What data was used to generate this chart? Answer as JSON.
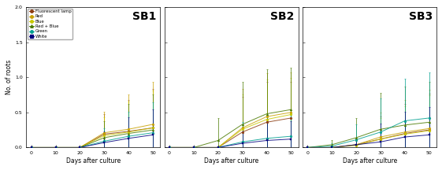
{
  "x": [
    0,
    10,
    20,
    30,
    40,
    50
  ],
  "panels": [
    "SB1",
    "SB2",
    "SB3"
  ],
  "series": [
    {
      "label": "Fluorescent lamp",
      "color": "#8B3A0F",
      "marker": "o"
    },
    {
      "label": "Red",
      "color": "#C8A000",
      "marker": "o"
    },
    {
      "label": "Blue",
      "color": "#C8C800",
      "marker": "o"
    },
    {
      "label": "Red + Blue",
      "color": "#4A7A00",
      "marker": "^"
    },
    {
      "label": "Green",
      "color": "#00A090",
      "marker": "o"
    },
    {
      "label": "White",
      "color": "#00007F",
      "marker": "s"
    }
  ],
  "ylim": [
    0.0,
    2.0
  ],
  "yticks": [
    0.0,
    0.5,
    1.0,
    1.5,
    2.0
  ],
  "xlabel": "Days after culture",
  "ylabel": "No. of roots",
  "means": {
    "SB1": [
      [
        0.0,
        0.0,
        0.0,
        0.19,
        0.23,
        0.28
      ],
      [
        0.0,
        0.0,
        0.0,
        0.21,
        0.26,
        0.33
      ],
      [
        0.0,
        0.0,
        0.0,
        0.17,
        0.22,
        0.28
      ],
      [
        0.0,
        0.0,
        0.0,
        0.14,
        0.2,
        0.25
      ],
      [
        0.0,
        0.0,
        0.0,
        0.09,
        0.16,
        0.21
      ],
      [
        0.0,
        0.0,
        0.0,
        0.07,
        0.13,
        0.18
      ]
    ],
    "SB2": [
      [
        0.0,
        0.0,
        0.0,
        0.22,
        0.36,
        0.42
      ],
      [
        0.0,
        0.0,
        0.0,
        0.28,
        0.44,
        0.5
      ],
      [
        0.0,
        0.0,
        0.0,
        0.26,
        0.4,
        0.47
      ],
      [
        0.0,
        0.0,
        0.1,
        0.33,
        0.48,
        0.54
      ],
      [
        0.0,
        0.0,
        0.0,
        0.08,
        0.13,
        0.16
      ],
      [
        0.0,
        0.0,
        0.0,
        0.06,
        0.1,
        0.12
      ]
    ],
    "SB3": [
      [
        0.0,
        0.0,
        0.04,
        0.12,
        0.2,
        0.25
      ],
      [
        0.0,
        0.0,
        0.04,
        0.15,
        0.22,
        0.27
      ],
      [
        0.0,
        0.0,
        0.03,
        0.12,
        0.19,
        0.24
      ],
      [
        0.0,
        0.04,
        0.14,
        0.26,
        0.32,
        0.36
      ],
      [
        0.0,
        0.02,
        0.11,
        0.22,
        0.38,
        0.42
      ],
      [
        0.0,
        0.0,
        0.04,
        0.08,
        0.15,
        0.18
      ]
    ]
  },
  "errors": {
    "SB1": [
      [
        0.0,
        0.0,
        0.0,
        0.28,
        0.45,
        0.55
      ],
      [
        0.0,
        0.0,
        0.0,
        0.3,
        0.5,
        0.6
      ],
      [
        0.0,
        0.0,
        0.0,
        0.26,
        0.44,
        0.53
      ],
      [
        0.0,
        0.0,
        0.0,
        0.23,
        0.42,
        0.5
      ],
      [
        0.0,
        0.0,
        0.0,
        0.18,
        0.35,
        0.43
      ],
      [
        0.0,
        0.0,
        0.0,
        0.16,
        0.3,
        0.36
      ]
    ],
    "SB2": [
      [
        0.0,
        0.0,
        0.0,
        0.5,
        0.58,
        0.52
      ],
      [
        0.0,
        0.0,
        0.0,
        0.55,
        0.62,
        0.57
      ],
      [
        0.0,
        0.0,
        0.0,
        0.5,
        0.57,
        0.52
      ],
      [
        0.0,
        0.0,
        0.32,
        0.6,
        0.63,
        0.6
      ],
      [
        0.0,
        0.0,
        0.0,
        0.28,
        0.33,
        0.3
      ],
      [
        0.0,
        0.0,
        0.0,
        0.23,
        0.28,
        0.26
      ]
    ],
    "SB3": [
      [
        0.0,
        0.0,
        0.07,
        0.32,
        0.42,
        0.52
      ],
      [
        0.0,
        0.0,
        0.07,
        0.35,
        0.46,
        0.55
      ],
      [
        0.0,
        0.0,
        0.06,
        0.3,
        0.4,
        0.5
      ],
      [
        0.0,
        0.07,
        0.28,
        0.52,
        0.55,
        0.58
      ],
      [
        0.0,
        0.04,
        0.22,
        0.48,
        0.6,
        0.65
      ],
      [
        0.0,
        0.0,
        0.09,
        0.26,
        0.36,
        0.4
      ]
    ]
  },
  "tick_fontsize": 4.5,
  "label_fontsize": 5.5,
  "panel_label_fontsize": 10,
  "background_color": "#ffffff"
}
